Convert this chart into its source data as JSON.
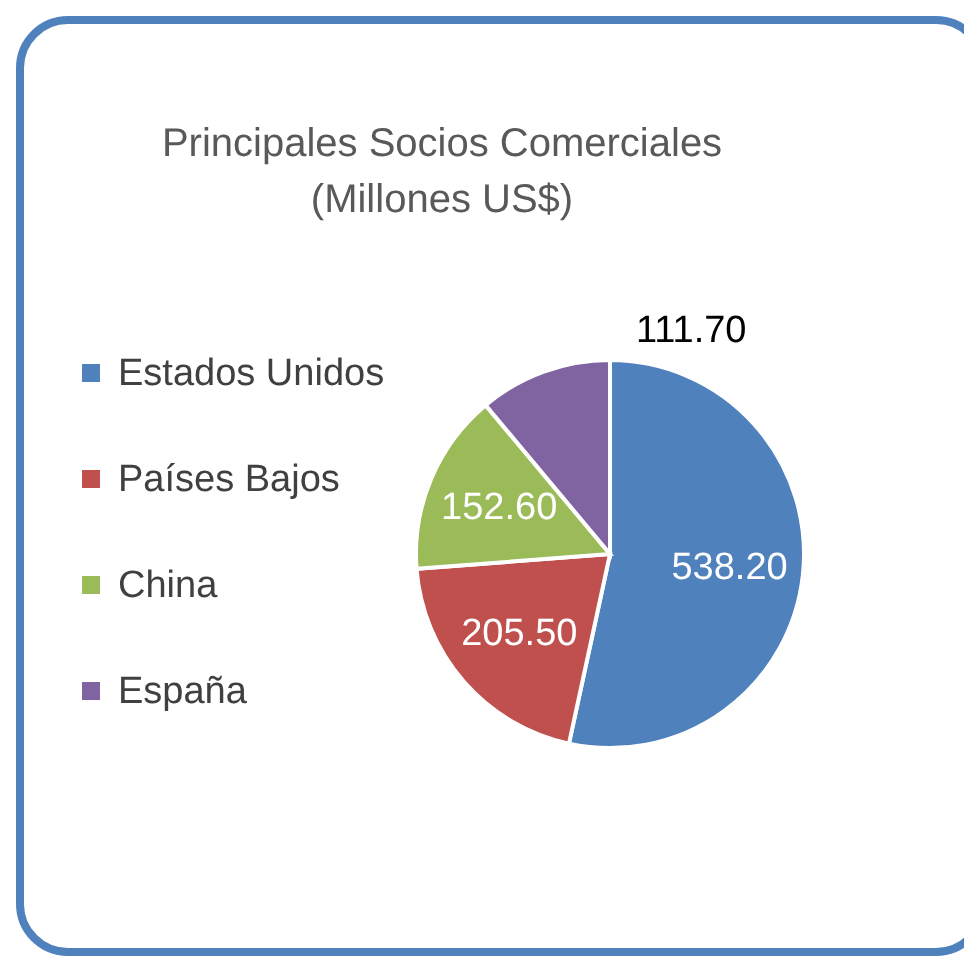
{
  "chart_data": {
    "type": "pie",
    "title": [
      "Principales Socios Comerciales",
      "(Millones US$)"
    ],
    "categories": [
      "Estados Unidos",
      "Países Bajos",
      "China",
      "España"
    ],
    "values": [
      538.2,
      205.5,
      152.6,
      111.7
    ],
    "value_labels": [
      "538.20",
      "205.50",
      "152.60",
      "111.70"
    ],
    "colors": [
      "#4f81bd",
      "#c0504d",
      "#9bbb59",
      "#8064a2"
    ],
    "legend": "left"
  }
}
